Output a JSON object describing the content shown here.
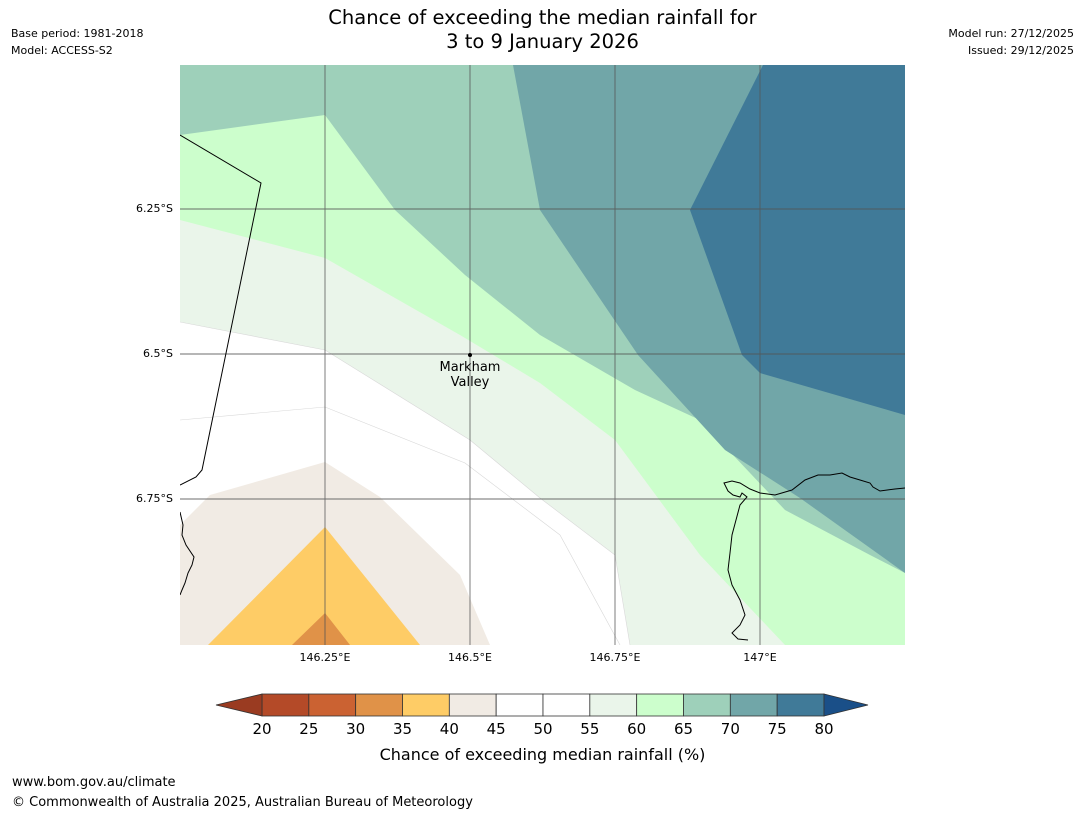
{
  "header": {
    "base_period": "Base period: 1981-2018",
    "model": "Model: ACCESS-S2",
    "model_run": "Model run: 27/12/2025",
    "issued": "Issued: 29/12/2025",
    "title_line1": "Chance of exceeding the median rainfall for",
    "title_line2": "3 to 9 January 2026"
  },
  "map": {
    "lat_labels": [
      "6.25°S",
      "6.5°S",
      "6.75°S"
    ],
    "lon_labels": [
      "146.25°E",
      "146.5°E",
      "146.75°E",
      "147°E"
    ],
    "place": {
      "line1": "Markham",
      "line2": "Valley"
    }
  },
  "colorbar": {
    "ticks": [
      "20",
      "25",
      "30",
      "35",
      "40",
      "45",
      "50",
      "55",
      "60",
      "65",
      "70",
      "75",
      "80"
    ],
    "colors": [
      "#b44a28",
      "#cb6232",
      "#e09248",
      "#fecc66",
      "#f1ebe4",
      "#ffffff",
      "#ffffff",
      "#eaf5ea",
      "#ccfecc",
      "#9ed0ba",
      "#71a6a8",
      "#407a98"
    ],
    "under_color": "#9a3b21",
    "over_color": "#1a4f88",
    "title": "Chance of exceeding median rainfall (%)"
  },
  "footer": {
    "url": "www.bom.gov.au/climate",
    "copyright": "© Commonwealth of Australia 2025, Australian Bureau of Meteorology"
  }
}
